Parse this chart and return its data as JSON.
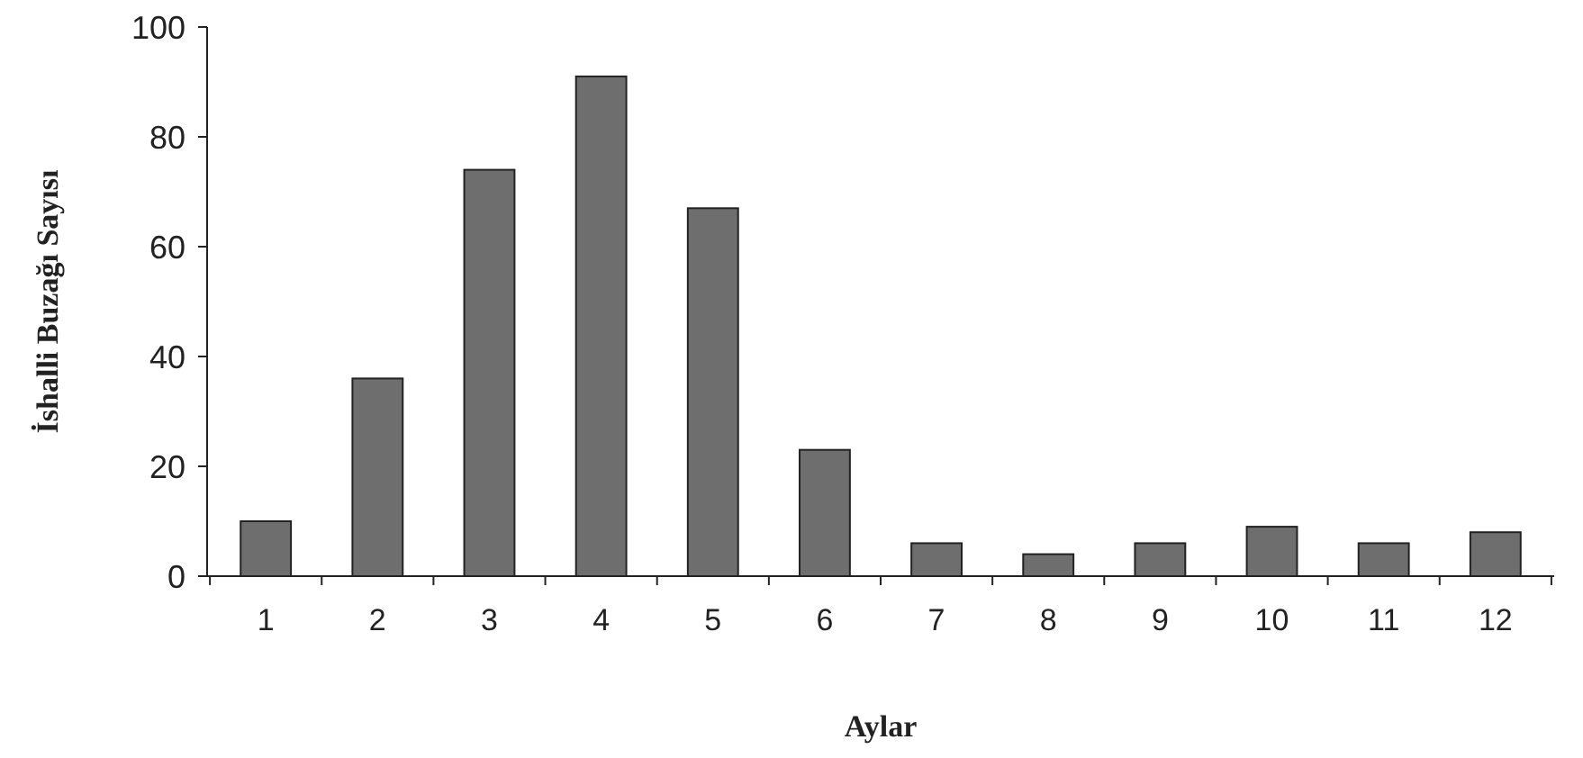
{
  "chart_data": {
    "type": "bar",
    "xlabel": "Aylar",
    "ylabel": "İshalli Buzağı Sayısı",
    "categories": [
      "1",
      "2",
      "3",
      "4",
      "5",
      "6",
      "7",
      "8",
      "9",
      "10",
      "11",
      "12"
    ],
    "values": [
      10,
      36,
      74,
      91,
      67,
      23,
      6,
      4,
      6,
      9,
      6,
      8
    ],
    "color": "#6e6e6e",
    "ylim": [
      0,
      100
    ],
    "yticks": [
      0,
      20,
      40,
      60,
      80,
      100
    ],
    "grid": false
  }
}
